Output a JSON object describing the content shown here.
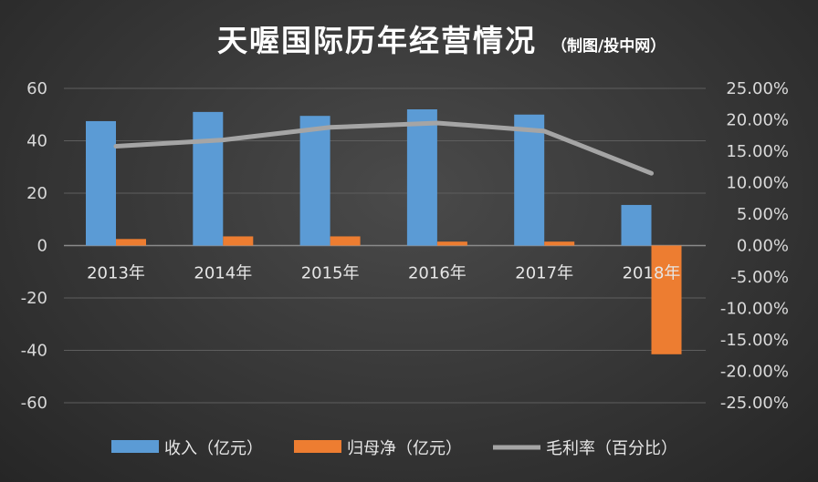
{
  "chart_data": {
    "type": "bar",
    "title": "天喔国际历年经营情况",
    "subtitle": "（制图/投中网）",
    "categories": [
      "2013年",
      "2014年",
      "2015年",
      "2016年",
      "2017年",
      "2018年"
    ],
    "series": [
      {
        "name": "收入（亿元）",
        "type": "bar",
        "axis": "left",
        "color": "#5b9bd5",
        "values": [
          47.5,
          51,
          49.5,
          52,
          50,
          15.5
        ]
      },
      {
        "name": "归母净（亿元）",
        "type": "bar",
        "axis": "left",
        "color": "#ed7d31",
        "values": [
          2.5,
          3.5,
          3.5,
          1.5,
          1.5,
          -41.5
        ]
      },
      {
        "name": "毛利率（百分比）",
        "type": "line",
        "axis": "right",
        "color": "#a5a5a5",
        "values": [
          15.8,
          16.8,
          18.8,
          19.5,
          18.2,
          11.5
        ]
      }
    ],
    "ylim": [
      -60,
      60
    ],
    "y_ticks": [
      "60",
      "40",
      "20",
      "0",
      "-20",
      "-40",
      "-60"
    ],
    "y2lim": [
      -25,
      25
    ],
    "y2_ticks": [
      "25.00%",
      "20.00%",
      "15.00%",
      "10.00%",
      "5.00%",
      "0.00%",
      "-5.00%",
      "-10.00%",
      "-15.00%",
      "-20.00%",
      "-25.00%"
    ],
    "grid": true,
    "legend_position": "bottom"
  }
}
